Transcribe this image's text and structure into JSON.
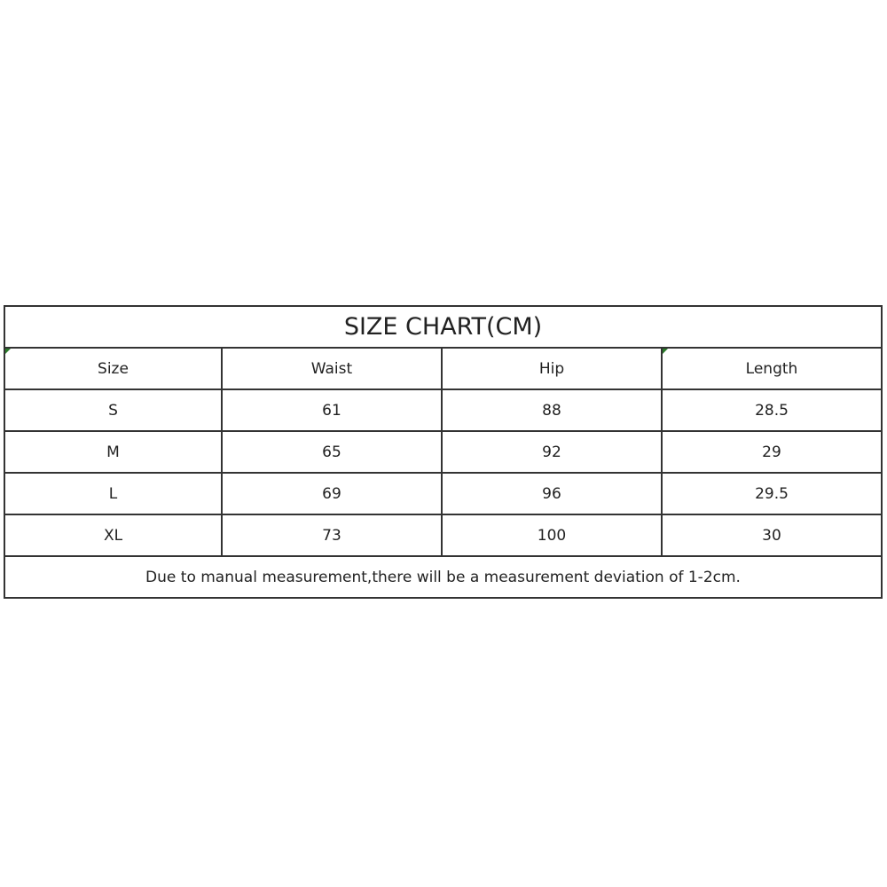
{
  "title": "SIZE CHART(CM)",
  "headers": [
    "Size",
    "Waist",
    "Hip",
    "Length"
  ],
  "rows": [
    [
      "S",
      "61",
      "88",
      "28.5"
    ],
    [
      "M",
      "65",
      "92",
      "29"
    ],
    [
      "L",
      "69",
      "96",
      "29.5"
    ],
    [
      "XL",
      "73",
      "100",
      "30"
    ]
  ],
  "note": "Due to manual measurement,there will be a measurement deviation of 1-2cm.",
  "colors": {
    "border": "#333333",
    "corner_mark": "#2a7a2a"
  }
}
